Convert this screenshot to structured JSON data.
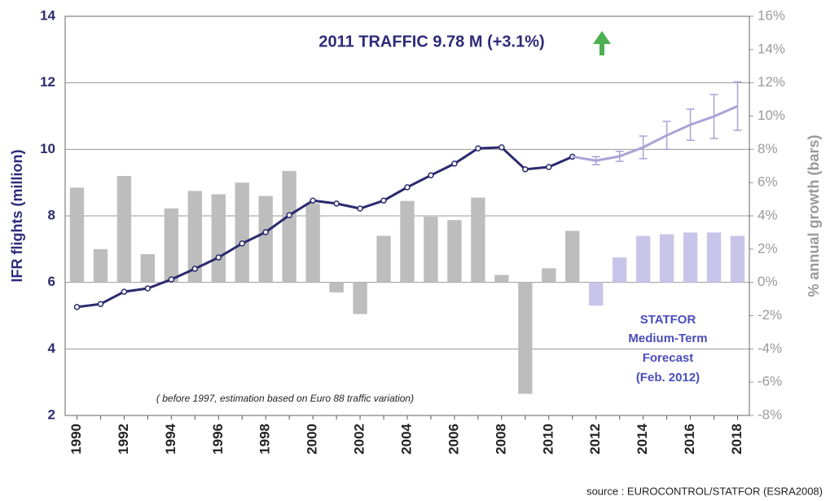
{
  "chart_data": {
    "type": "bar-line",
    "title": "2011 TRAFFIC  9.78 M (+3.1%)",
    "y_label": "IFR flights (million)",
    "y2_label": "% annual growth (bars)",
    "annotation": "( before 1997, estimation based on Euro 88 traffic variation)",
    "forecast_note": [
      "STATFOR",
      "Medium-Term",
      "Forecast",
      "(Feb. 2012)"
    ],
    "source": "source : EUROCONTROL/STATFOR (ESRA2008)",
    "categories": [
      "1990",
      null,
      "1992",
      null,
      "1994",
      null,
      "1996",
      null,
      "1998",
      null,
      "2000",
      null,
      "2002",
      null,
      "2004",
      null,
      "2006",
      null,
      "2008",
      null,
      "2010",
      null,
      "2012",
      null,
      "2014",
      null,
      "2016",
      null,
      "2018"
    ],
    "series": [
      {
        "type": "bar",
        "axis": "y2",
        "color": "#bdbdbd",
        "values": [
          5.7,
          2.0,
          6.4,
          1.7,
          4.45,
          5.5,
          5.3,
          6.0,
          5.2,
          6.7,
          4.75,
          -0.6,
          -1.9,
          2.8,
          4.9,
          3.95,
          3.75,
          5.1,
          0.45,
          -6.7,
          0.85,
          3.1,
          null,
          null,
          null,
          null,
          null,
          null,
          null
        ]
      },
      {
        "type": "bar",
        "axis": "y2",
        "color": "#c9c5ea",
        "values": [
          null,
          null,
          null,
          null,
          null,
          null,
          null,
          null,
          null,
          null,
          null,
          null,
          null,
          null,
          null,
          null,
          null,
          null,
          null,
          null,
          null,
          null,
          -1.4,
          1.5,
          2.8,
          2.9,
          3.0,
          3.0,
          2.8
        ]
      },
      {
        "type": "line",
        "axis": "y",
        "color": "#2b2a6e",
        "markers": true,
        "values": [
          5.26,
          5.35,
          5.72,
          5.82,
          6.09,
          6.41,
          6.75,
          7.17,
          7.51,
          8.02,
          8.46,
          8.37,
          8.22,
          8.46,
          8.86,
          9.22,
          9.57,
          10.03,
          10.06,
          9.4,
          9.47,
          9.78,
          null,
          null,
          null,
          null,
          null,
          null,
          null
        ]
      },
      {
        "type": "line",
        "axis": "y",
        "color": "#a9a3d6",
        "markers": false,
        "values": [
          null,
          null,
          null,
          null,
          null,
          null,
          null,
          null,
          null,
          null,
          null,
          null,
          null,
          null,
          null,
          null,
          null,
          null,
          null,
          null,
          null,
          9.78,
          9.66,
          9.79,
          10.06,
          10.42,
          10.74,
          10.99,
          11.3
        ],
        "errors": [
          null,
          null,
          null,
          null,
          null,
          null,
          null,
          null,
          null,
          null,
          null,
          null,
          null,
          null,
          null,
          null,
          null,
          null,
          null,
          null,
          null,
          null,
          0.12,
          0.15,
          0.34,
          0.42,
          0.47,
          0.66,
          0.73
        ]
      }
    ],
    "ylim": [
      2,
      14
    ],
    "yticks": [
      2,
      4,
      6,
      8,
      10,
      12,
      14
    ],
    "y2lim": [
      -8,
      16
    ],
    "y2ticks": [
      {
        "value": -8,
        "label": "-8%"
      },
      {
        "value": -6,
        "label": "-6%"
      },
      {
        "value": -4,
        "label": "-4%"
      },
      {
        "value": -2,
        "label": "-2%"
      },
      {
        "value": 0,
        "label": "0%"
      },
      {
        "value": 2,
        "label": "2%"
      },
      {
        "value": 4,
        "label": "4%"
      },
      {
        "value": 6,
        "label": "6%"
      },
      {
        "value": 8,
        "label": "8%"
      },
      {
        "value": 10,
        "label": "10%"
      },
      {
        "value": 12,
        "label": "12%"
      },
      {
        "value": 14,
        "label": "14%"
      },
      {
        "value": 16,
        "label": "16%"
      }
    ],
    "grid": true
  }
}
